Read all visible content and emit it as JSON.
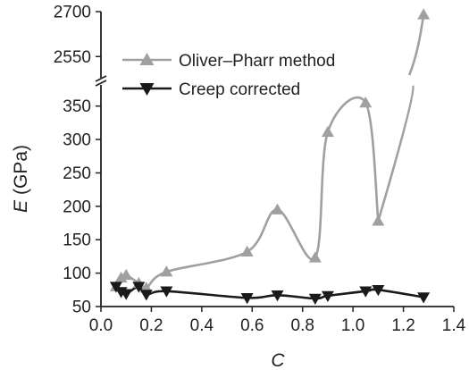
{
  "chart_data": {
    "type": "scatter",
    "xlabel": "C",
    "ylabel": "E",
    "ylabel_unit": "(GPa)",
    "xlim": [
      0.0,
      1.4
    ],
    "x_ticks": [
      "0.0",
      "0.2",
      "0.4",
      "0.6",
      "0.8",
      "1.0",
      "1.2",
      "1.4"
    ],
    "y_axis_break": true,
    "ylim_lower": [
      50,
      375
    ],
    "ylim_upper": [
      2500,
      2700
    ],
    "y_ticks_lower": [
      "50",
      "100",
      "150",
      "200",
      "250",
      "300",
      "350"
    ],
    "y_ticks_upper": [
      "2550",
      "2700"
    ],
    "legend_position": "top-left",
    "grid": false,
    "series": [
      {
        "name": "Oliver–Pharr method",
        "marker": "triangle-up",
        "color": "#a0a0a0",
        "x": [
          0.06,
          0.08,
          0.1,
          0.15,
          0.18,
          0.26,
          0.58,
          0.7,
          0.85,
          0.9,
          1.05,
          1.1,
          1.28
        ],
        "y": [
          80,
          93,
          97,
          85,
          78,
          102,
          132,
          195,
          123,
          311,
          355,
          178,
          2690
        ]
      },
      {
        "name": "Creep corrected",
        "marker": "triangle-down",
        "color": "#1a1a1a",
        "x": [
          0.06,
          0.08,
          0.1,
          0.15,
          0.18,
          0.26,
          0.58,
          0.7,
          0.85,
          0.9,
          1.05,
          1.1,
          1.28
        ],
        "y": [
          80,
          72,
          69,
          80,
          68,
          73,
          63,
          67,
          62,
          66,
          73,
          75,
          64
        ]
      }
    ]
  }
}
